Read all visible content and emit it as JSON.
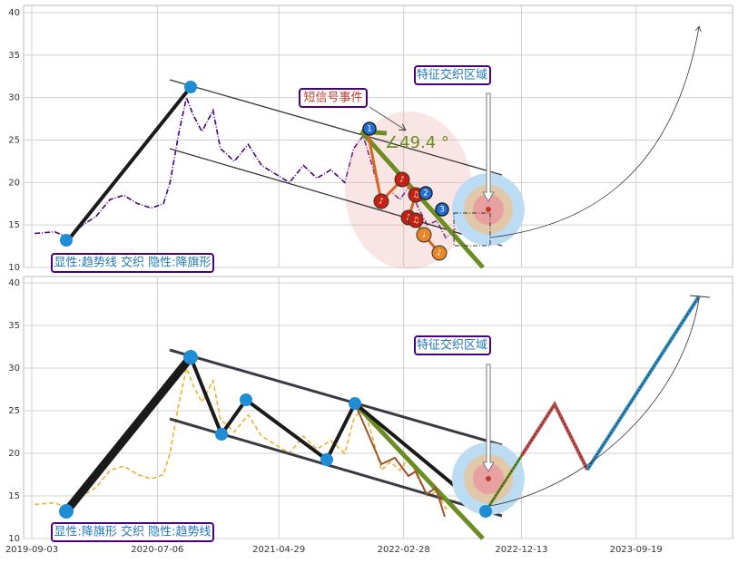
{
  "chart_data": [
    {
      "type": "line",
      "x": [
        "2019-09-10",
        "2019-10-29",
        "2019-12-02",
        "2020-01-05",
        "2020-02-07",
        "2020-03-12",
        "2020-04-15",
        "2020-05-19",
        "2020-06-21",
        "2020-07-21",
        "2020-08-06",
        "2020-08-28",
        "2020-09-15",
        "2020-10-01",
        "2020-10-23",
        "2020-11-19",
        "2020-12-07",
        "2021-01-10",
        "2021-02-13",
        "2021-03-18",
        "2021-04-21",
        "2021-05-25",
        "2021-06-28",
        "2021-07-31",
        "2021-09-03",
        "2021-10-07",
        "2021-10-29",
        "2021-11-21",
        "2021-12-13",
        "2022-01-05",
        "2022-01-27",
        "2022-02-19",
        "2022-03-13",
        "2022-04-05",
        "2022-04-27",
        "2022-05-20",
        "2022-06-11",
        "2022-07-04",
        "2022-08-07",
        "2022-09-09",
        "2022-10-13"
      ],
      "series": [
        {
          "color": "#4b0082",
          "linestyle": "dashdot",
          "values": [
            14,
            14.2,
            13.5,
            15,
            16,
            18,
            18.5,
            17.5,
            17,
            17.5,
            20,
            26,
            30,
            28,
            26,
            28.5,
            24,
            22.5,
            24.5,
            22,
            21,
            20,
            22,
            20.5,
            21.5,
            20,
            24,
            25.5,
            22,
            18,
            19,
            18,
            19.5,
            17,
            15,
            15.5,
            13.5,
            14.5,
            15,
            14,
            13.5
          ]
        }
      ],
      "xlim": [
        "2019-08-14",
        "2024-05-12"
      ],
      "ylim": [
        10,
        40.85
      ],
      "yticks": [
        10,
        15,
        20,
        25,
        30,
        35,
        40
      ],
      "grid": true,
      "annotations": [
        "显性:趋势线 交织 隐性:降旗形",
        "短信号事件",
        "特征交织区域",
        "∠49.4 °"
      ],
      "markers": [
        "1",
        "2",
        "3"
      ],
      "notes": [
        "♪",
        "♪",
        "♫",
        "♪",
        "♫",
        "♩",
        "♪"
      ]
    },
    {
      "type": "line",
      "x": [
        "2019-09-10",
        "2019-10-29",
        "2019-12-02",
        "2020-01-05",
        "2020-02-07",
        "2020-03-12",
        "2020-04-15",
        "2020-05-19",
        "2020-06-21",
        "2020-07-21",
        "2020-08-06",
        "2020-08-28",
        "2020-09-15",
        "2020-10-01",
        "2020-10-23",
        "2020-11-19",
        "2020-12-07",
        "2021-01-10",
        "2021-02-13",
        "2021-03-18",
        "2021-04-21",
        "2021-05-25",
        "2021-06-28",
        "2021-07-31",
        "2021-09-03",
        "2021-10-07",
        "2021-10-29",
        "2021-11-21",
        "2021-12-13",
        "2022-01-05",
        "2022-01-27",
        "2022-02-19",
        "2022-03-13",
        "2022-04-05",
        "2022-04-27",
        "2022-05-20",
        "2022-06-11",
        "2022-07-04"
      ],
      "series": [
        {
          "color": "#f0b030",
          "linestyle": "dashed",
          "values": [
            14,
            14.2,
            13.5,
            15,
            16,
            18,
            18.5,
            17.5,
            17,
            17.5,
            20,
            26,
            30,
            28,
            26,
            28.5,
            24,
            22.5,
            24.5,
            22,
            21,
            20,
            22,
            20.5,
            21.5,
            20,
            24,
            25.5,
            22,
            18,
            19,
            18,
            19.5,
            17,
            15,
            15.5,
            13.5,
            14.5
          ]
        }
      ],
      "xlim": [
        "2019-08-14",
        "2024-05-12"
      ],
      "xticks": [
        "2019-09-03",
        "2020-07-06",
        "2021-04-29",
        "2022-02-28",
        "2022-12-13",
        "2023-09-19"
      ],
      "ylim": [
        10,
        40.75
      ],
      "yticks": [
        10,
        15,
        20,
        25,
        30,
        35,
        40
      ],
      "grid": true,
      "annotations": [
        "显性:降旗形 交织 隐性:趋势线",
        "特征交织区域"
      ]
    }
  ]
}
